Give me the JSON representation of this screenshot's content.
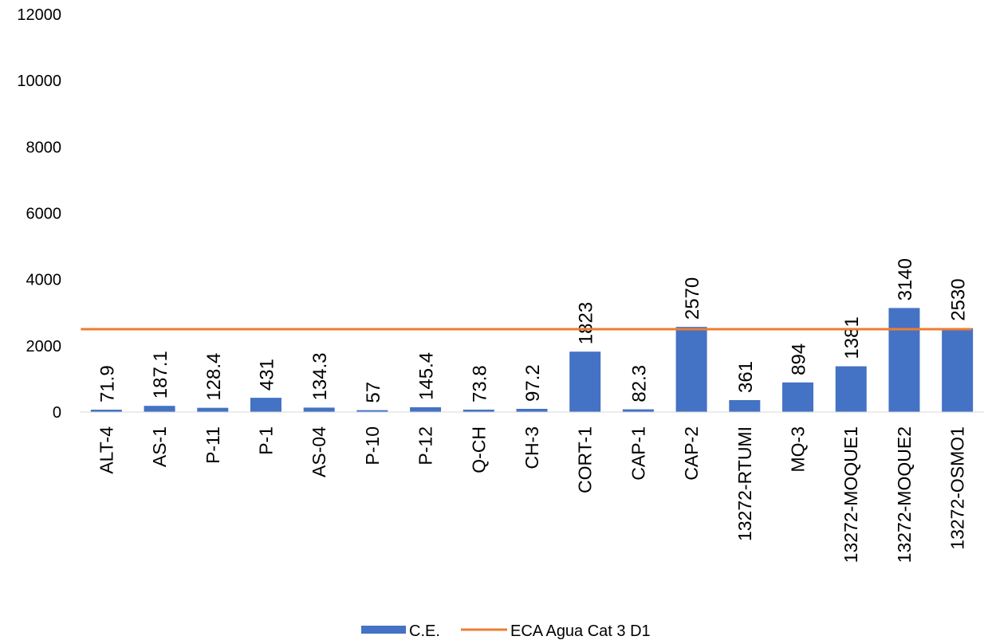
{
  "chart_data": {
    "type": "bar",
    "title": "",
    "xlabel": "",
    "ylabel": "",
    "ylim": [
      0,
      12000
    ],
    "yticks": [
      0,
      2000,
      4000,
      6000,
      8000,
      10000,
      12000
    ],
    "grid": false,
    "legend_position": "bottom",
    "categories": [
      "ALT-4",
      "AS-1",
      "P-11",
      "P-1",
      "AS-04",
      "P-10",
      "P-12",
      "Q-CH",
      "CH-3",
      "CORT-1",
      "CAP-1",
      "CAP-2",
      "13272-RTUMI",
      "MQ-3",
      "13272-MOQUE1",
      "13272-MOQUE2",
      "13272-OSMO1"
    ],
    "series": [
      {
        "name": "C.E.",
        "type": "bar",
        "color": "#4472C4",
        "values": [
          71.9,
          187.1,
          128.4,
          431,
          134.3,
          57,
          145.4,
          73.8,
          97.2,
          1823,
          82.3,
          2570,
          361,
          894,
          1381,
          3140,
          2530
        ],
        "labels": [
          "71.9",
          "187.1",
          "128.4",
          "431",
          "134.3",
          "57",
          "145.4",
          "73.8",
          "97.2",
          "1823",
          "82.3",
          "2570",
          "361",
          "894",
          "1381",
          "3140",
          "2530"
        ]
      },
      {
        "name": "ECA Agua Cat 3 D1",
        "type": "line",
        "color": "#ED7D31",
        "values": [
          2500,
          2500,
          2500,
          2500,
          2500,
          2500,
          2500,
          2500,
          2500,
          2500,
          2500,
          2500,
          2500,
          2500,
          2500,
          2500,
          2500
        ]
      }
    ]
  }
}
